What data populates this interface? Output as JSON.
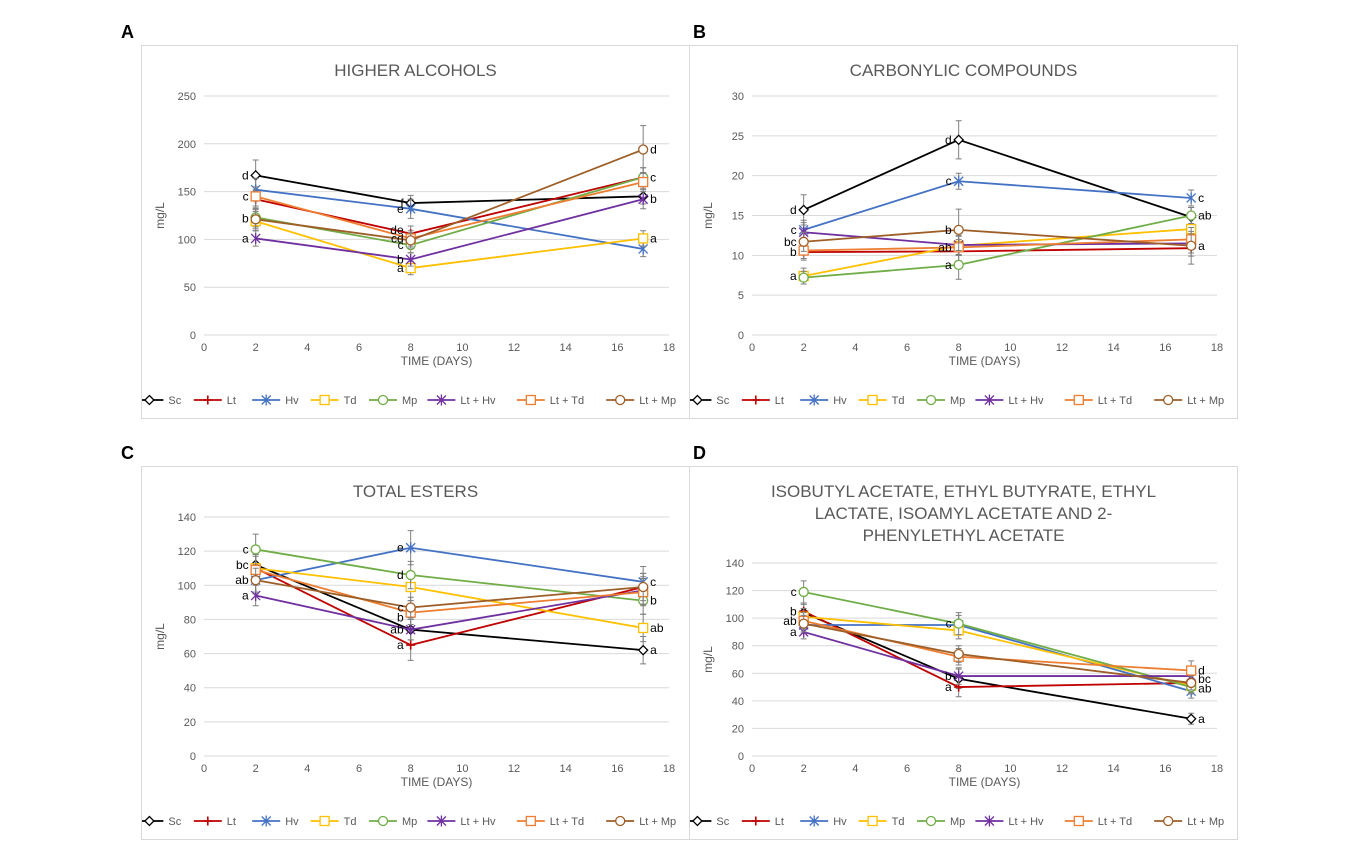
{
  "legend_series": [
    "Sc",
    "Lt",
    "Hv",
    "Td",
    "Mp",
    "Lt + Hv",
    "Lt + Td",
    "Lt + Mp"
  ],
  "colors": {
    "Sc": "#000000",
    "Lt": "#c00000",
    "Hv": "#4472c4",
    "Td": "#ffc000",
    "Mp": "#70ad47",
    "Lt + Hv": "#7030a0",
    "Lt + Td": "#ed7d31",
    "Lt + Mp": "#9e5e28"
  },
  "markers": {
    "Sc": "diamond",
    "Lt": "plus",
    "Hv": "star",
    "Td": "square",
    "Mp": "circle",
    "Lt + Hv": "star",
    "Lt + Td": "square",
    "Lt + Mp": "circle"
  },
  "chart_data": [
    {
      "panel": "A",
      "type": "line",
      "title_lines": [
        "HIGHER ALCOHOLS"
      ],
      "xlabel": "TIME (DAYS)",
      "ylabel": "mg/L",
      "xlim": [
        0,
        18
      ],
      "xticks": [
        0,
        2,
        4,
        6,
        8,
        10,
        12,
        14,
        16,
        18
      ],
      "ylim": [
        0,
        250
      ],
      "yticks": [
        0,
        50,
        100,
        150,
        200,
        250
      ],
      "x": [
        2,
        8,
        17
      ],
      "legend": "bottom",
      "series": [
        {
          "name": "Sc",
          "values": [
            167,
            138,
            145
          ],
          "err": [
            16,
            8,
            8
          ]
        },
        {
          "name": "Lt",
          "values": [
            142,
            106,
            165
          ],
          "err": [
            10,
            8,
            10
          ]
        },
        {
          "name": "Hv",
          "values": [
            152,
            132,
            90
          ],
          "err": [
            12,
            10,
            8
          ]
        },
        {
          "name": "Td",
          "values": [
            119,
            70,
            101
          ],
          "err": [
            10,
            7,
            8
          ]
        },
        {
          "name": "Mp",
          "values": [
            123,
            94,
            165
          ],
          "err": [
            10,
            8,
            10
          ]
        },
        {
          "name": "Lt + Hv",
          "values": [
            101,
            79,
            142
          ],
          "err": [
            8,
            7,
            10
          ]
        },
        {
          "name": "Lt + Td",
          "values": [
            145,
            101,
            160
          ],
          "err": [
            10,
            8,
            10
          ]
        },
        {
          "name": "Lt + Mp",
          "values": [
            121,
            99,
            194
          ],
          "err": [
            10,
            8,
            25
          ]
        }
      ],
      "annotations": [
        {
          "x": 2,
          "y": 167,
          "text": "d"
        },
        {
          "x": 2,
          "y": 145,
          "text": "c"
        },
        {
          "x": 2,
          "y": 122,
          "text": "b"
        },
        {
          "x": 2,
          "y": 101,
          "text": "a"
        },
        {
          "x": 8,
          "y": 138,
          "text": "f"
        },
        {
          "x": 8,
          "y": 132,
          "text": "e"
        },
        {
          "x": 8,
          "y": 110,
          "text": "de"
        },
        {
          "x": 8,
          "y": 101,
          "text": "cd"
        },
        {
          "x": 8,
          "y": 94,
          "text": "c"
        },
        {
          "x": 8,
          "y": 79,
          "text": "b"
        },
        {
          "x": 8,
          "y": 70,
          "text": "a"
        },
        {
          "x": 17,
          "y": 194,
          "text": "d"
        },
        {
          "x": 17,
          "y": 165,
          "text": "c"
        },
        {
          "x": 17,
          "y": 142,
          "text": "b"
        },
        {
          "x": 17,
          "y": 101,
          "text": "a"
        }
      ]
    },
    {
      "panel": "B",
      "type": "line",
      "title_lines": [
        "CARBONYLIC COMPOUNDS"
      ],
      "xlabel": "TIME (DAYS)",
      "ylabel": "mg/L",
      "xlim": [
        0,
        18
      ],
      "xticks": [
        0,
        2,
        4,
        6,
        8,
        10,
        12,
        14,
        16,
        18
      ],
      "ylim": [
        0,
        30
      ],
      "yticks": [
        0,
        5,
        10,
        15,
        20,
        25,
        30
      ],
      "x": [
        2,
        8,
        17
      ],
      "legend": "bottom",
      "series": [
        {
          "name": "Sc",
          "values": [
            15.7,
            24.5,
            14.8
          ],
          "err": [
            1.9,
            2.4,
            1.2
          ]
        },
        {
          "name": "Lt",
          "values": [
            10.4,
            10.5,
            10.9
          ],
          "err": [
            1.0,
            1.2,
            1.0
          ]
        },
        {
          "name": "Hv",
          "values": [
            13.2,
            19.3,
            17.2
          ],
          "err": [
            1.2,
            1.0,
            1.0
          ]
        },
        {
          "name": "Td",
          "values": [
            7.4,
            11.2,
            13.3
          ],
          "err": [
            1.0,
            1.2,
            1.2
          ]
        },
        {
          "name": "Mp",
          "values": [
            7.2,
            8.8,
            15.0
          ],
          "err": [
            0.8,
            1.8,
            1.0
          ]
        },
        {
          "name": "Lt + Hv",
          "values": [
            12.9,
            11.3,
            11.5
          ],
          "err": [
            1.2,
            1.2,
            1.2
          ]
        },
        {
          "name": "Lt + Td",
          "values": [
            10.6,
            11.0,
            12.0
          ],
          "err": [
            1.0,
            1.0,
            1.0
          ]
        },
        {
          "name": "Lt + Mp",
          "values": [
            11.7,
            13.2,
            11.2
          ],
          "err": [
            1.2,
            2.6,
            2.3
          ]
        }
      ],
      "annotations": [
        {
          "x": 2,
          "y": 15.7,
          "text": "d"
        },
        {
          "x": 2,
          "y": 13.2,
          "text": "c"
        },
        {
          "x": 2,
          "y": 11.7,
          "text": "bc"
        },
        {
          "x": 2,
          "y": 10.4,
          "text": "b"
        },
        {
          "x": 2,
          "y": 7.4,
          "text": "a"
        },
        {
          "x": 8,
          "y": 24.5,
          "text": "d"
        },
        {
          "x": 8,
          "y": 19.3,
          "text": "c"
        },
        {
          "x": 8,
          "y": 13.2,
          "text": "b"
        },
        {
          "x": 8,
          "y": 11.0,
          "text": "ab"
        },
        {
          "x": 8,
          "y": 8.8,
          "text": "a"
        },
        {
          "x": 17,
          "y": 17.2,
          "text": "c"
        },
        {
          "x": 17,
          "y": 15.0,
          "text": "ab"
        },
        {
          "x": 17,
          "y": 11.2,
          "text": "a"
        }
      ]
    },
    {
      "panel": "C",
      "type": "line",
      "title_lines": [
        "TOTAL ESTERS"
      ],
      "xlabel": "TIME (DAYS)",
      "ylabel": "mg/L",
      "xlim": [
        0,
        18
      ],
      "xticks": [
        0,
        2,
        4,
        6,
        8,
        10,
        12,
        14,
        16,
        18
      ],
      "ylim": [
        0,
        140
      ],
      "yticks": [
        0,
        20,
        40,
        60,
        80,
        100,
        120,
        140
      ],
      "x": [
        2,
        8,
        17
      ],
      "legend": "bottom",
      "series": [
        {
          "name": "Sc",
          "values": [
            112,
            74,
            62
          ],
          "err": [
            8,
            6,
            8
          ]
        },
        {
          "name": "Lt",
          "values": [
            110,
            65,
            99
          ],
          "err": [
            8,
            9,
            8
          ]
        },
        {
          "name": "Hv",
          "values": [
            103,
            122,
            102
          ],
          "err": [
            8,
            10,
            9
          ]
        },
        {
          "name": "Td",
          "values": [
            110,
            99,
            75
          ],
          "err": [
            8,
            8,
            8
          ]
        },
        {
          "name": "Mp",
          "values": [
            121,
            106,
            91
          ],
          "err": [
            9,
            8,
            8
          ]
        },
        {
          "name": "Lt + Hv",
          "values": [
            94,
            74,
            97
          ],
          "err": [
            6,
            6,
            8
          ]
        },
        {
          "name": "Lt + Td",
          "values": [
            109,
            84,
            96
          ],
          "err": [
            8,
            7,
            8
          ]
        },
        {
          "name": "Lt + Mp",
          "values": [
            103,
            87,
            99
          ],
          "err": [
            7,
            6,
            8
          ]
        }
      ],
      "annotations": [
        {
          "x": 2,
          "y": 121,
          "text": "c"
        },
        {
          "x": 2,
          "y": 112,
          "text": "bc"
        },
        {
          "x": 2,
          "y": 103,
          "text": "ab"
        },
        {
          "x": 2,
          "y": 94,
          "text": "a"
        },
        {
          "x": 8,
          "y": 122,
          "text": "e"
        },
        {
          "x": 8,
          "y": 106,
          "text": "d"
        },
        {
          "x": 8,
          "y": 87,
          "text": "c"
        },
        {
          "x": 8,
          "y": 81,
          "text": "b"
        },
        {
          "x": 8,
          "y": 74,
          "text": "ab"
        },
        {
          "x": 8,
          "y": 65,
          "text": "a"
        },
        {
          "x": 17,
          "y": 102,
          "text": "c"
        },
        {
          "x": 17,
          "y": 91,
          "text": "b"
        },
        {
          "x": 17,
          "y": 75,
          "text": "ab"
        },
        {
          "x": 17,
          "y": 62,
          "text": "a"
        }
      ]
    },
    {
      "panel": "D",
      "type": "line",
      "title_lines": [
        "ISOBUTYL ACETATE, ETHYL BUTYRATE, ETHYL",
        "LACTATE, ISOAMYL ACETATE AND 2-",
        "PHENYLETHYL ACETATE"
      ],
      "xlabel": "TIME (DAYS)",
      "ylabel": "mg/L",
      "xlim": [
        0,
        18
      ],
      "xticks": [
        0,
        2,
        4,
        6,
        8,
        10,
        12,
        14,
        16,
        18
      ],
      "ylim": [
        0,
        140
      ],
      "yticks": [
        0,
        20,
        40,
        60,
        80,
        100,
        120,
        140
      ],
      "x": [
        2,
        8,
        17
      ],
      "legend": "bottom",
      "series": [
        {
          "name": "Sc",
          "values": [
            104,
            56,
            27
          ],
          "err": [
            6,
            7,
            4
          ]
        },
        {
          "name": "Lt",
          "values": [
            105,
            50,
            53
          ],
          "err": [
            6,
            7,
            5
          ]
        },
        {
          "name": "Hv",
          "values": [
            95,
            95,
            47
          ],
          "err": [
            6,
            7,
            5
          ]
        },
        {
          "name": "Td",
          "values": [
            101,
            91,
            51
          ],
          "err": [
            6,
            6,
            5
          ]
        },
        {
          "name": "Mp",
          "values": [
            119,
            96,
            50
          ],
          "err": [
            8,
            8,
            5
          ]
        },
        {
          "name": "Lt + Hv",
          "values": [
            90,
            58,
            58
          ],
          "err": [
            5,
            6,
            5
          ]
        },
        {
          "name": "Lt + Td",
          "values": [
            98,
            72,
            62
          ],
          "err": [
            6,
            6,
            7
          ]
        },
        {
          "name": "Lt + Mp",
          "values": [
            96,
            74,
            53
          ],
          "err": [
            6,
            6,
            5
          ]
        }
      ],
      "annotations": [
        {
          "x": 2,
          "y": 119,
          "text": "c"
        },
        {
          "x": 2,
          "y": 105,
          "text": "b"
        },
        {
          "x": 2,
          "y": 98,
          "text": "ab"
        },
        {
          "x": 2,
          "y": 90,
          "text": "a"
        },
        {
          "x": 8,
          "y": 96,
          "text": "c"
        },
        {
          "x": 8,
          "y": 58,
          "text": "b"
        },
        {
          "x": 8,
          "y": 50,
          "text": "a"
        },
        {
          "x": 17,
          "y": 62,
          "text": "d"
        },
        {
          "x": 17,
          "y": 56,
          "text": "bc"
        },
        {
          "x": 17,
          "y": 49,
          "text": "ab"
        },
        {
          "x": 17,
          "y": 27,
          "text": "a"
        }
      ]
    }
  ]
}
